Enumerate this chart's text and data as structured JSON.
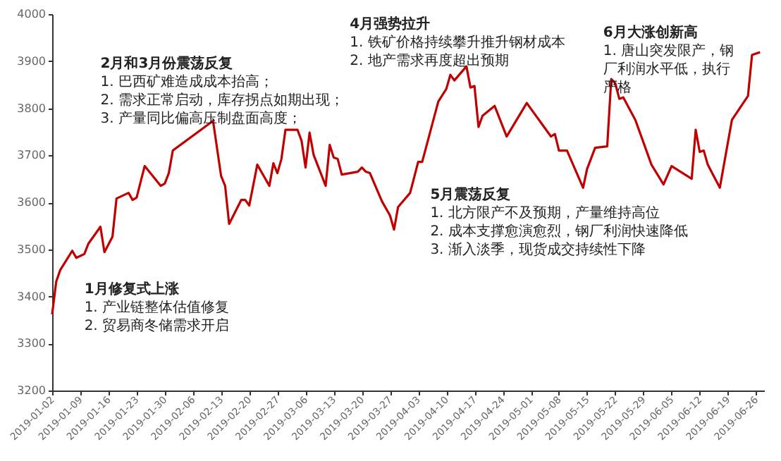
{
  "chart_data": {
    "type": "line",
    "annotations": [
      "1月修复式上涨\n1. 产业链整体估值修复\n2. 贸易商冬储需求开启",
      "2月和3月份震荡反复\n1. 巴西矿难造成成本抬高；\n2. 需求正常启动，库存拐点如期出现；\n3. 产量同比偏高压制盘面高度；",
      "4月强势拉升\n1. 铁矿价格持续攀升推升钢材成本\n2. 地产需求再度超出预期",
      "5月震荡反复\n1. 北方限产不及预期，产量维持高位\n2. 成本支撑愈演愈烈，钢厂利润快速降低\n3. 渐入淡季，现货成交持续性下降",
      "6月大涨创新高\n1. 唐山突发限产，钢",
      "厂利润水平低，执行",
      "严格"
    ],
    "x": [
      "2019-01-02",
      "2019-01-03",
      "2019-01-04",
      "2019-01-07",
      "2019-01-08",
      "2019-01-10",
      "2019-01-11",
      "2019-01-14",
      "2019-01-15",
      "2019-01-17",
      "2019-01-18",
      "2019-01-21",
      "2019-01-22",
      "2019-01-23",
      "2019-01-25",
      "2019-01-29",
      "2019-01-30",
      "2019-01-31",
      "2019-02-01",
      "2019-02-11",
      "2019-02-13",
      "2019-02-14",
      "2019-02-15",
      "2019-02-18",
      "2019-02-19",
      "2019-02-20",
      "2019-02-22",
      "2019-02-25",
      "2019-02-26",
      "2019-02-27",
      "2019-02-28",
      "2019-03-01",
      "2019-03-04",
      "2019-03-05",
      "2019-03-06",
      "2019-03-07",
      "2019-03-08",
      "2019-03-11",
      "2019-03-12",
      "2019-03-13",
      "2019-03-14",
      "2019-03-15",
      "2019-03-19",
      "2019-03-20",
      "2019-03-21",
      "2019-03-22",
      "2019-03-25",
      "2019-03-27",
      "2019-03-28",
      "2019-03-29",
      "2019-04-01",
      "2019-04-03",
      "2019-04-04",
      "2019-04-08",
      "2019-04-10",
      "2019-04-11",
      "2019-04-12",
      "2019-04-15",
      "2019-04-16",
      "2019-04-17",
      "2019-04-18",
      "2019-04-19",
      "2019-04-22",
      "2019-04-25",
      "2019-04-30",
      "2019-05-01",
      "2019-05-06",
      "2019-05-07",
      "2019-05-08",
      "2019-05-10",
      "2019-05-14",
      "2019-05-15",
      "2019-05-17",
      "2019-05-20",
      "2019-05-21",
      "2019-05-22",
      "2019-05-23",
      "2019-05-24",
      "2019-05-27",
      "2019-05-31",
      "2019-06-03",
      "2019-06-05",
      "2019-06-10",
      "2019-06-11",
      "2019-06-12",
      "2019-06-13",
      "2019-06-14",
      "2019-06-17",
      "2019-06-20",
      "2019-06-24",
      "2019-06-25",
      "2019-06-27"
    ],
    "series": [
      {
        "color": "#c00000",
        "values": [
          3362,
          3431,
          3456,
          3497,
          3482,
          3490,
          3512,
          3548,
          3494,
          3527,
          3608,
          3620,
          3605,
          3610,
          3677,
          3635,
          3640,
          3662,
          3710,
          3773,
          3656,
          3635,
          3554,
          3605,
          3605,
          3593,
          3680,
          3635,
          3683,
          3662,
          3692,
          3754,
          3754,
          3731,
          3674,
          3748,
          3701,
          3635,
          3722,
          3695,
          3692,
          3659,
          3665,
          3674,
          3665,
          3662,
          3602,
          3572,
          3542,
          3590,
          3620,
          3686,
          3686,
          3814,
          3841,
          3871,
          3859,
          3889,
          3844,
          3847,
          3760,
          3784,
          3805,
          3740,
          3811,
          3799,
          3740,
          3745,
          3710,
          3710,
          3631,
          3671,
          3716,
          3719,
          3862,
          3853,
          3820,
          3823,
          3775,
          3680,
          3638,
          3677,
          3650,
          3754,
          3707,
          3710,
          3680,
          3631,
          3775,
          3826,
          3913,
          3919
        ]
      }
    ],
    "xlim": [
      "2019-01-02",
      "2019-06-28"
    ],
    "xticks": [
      "2019-01-02",
      "2019-01-09",
      "2019-01-16",
      "2019-01-23",
      "2019-01-30",
      "2019-02-06",
      "2019-02-13",
      "2019-02-20",
      "2019-02-27",
      "2019-03-06",
      "2019-03-13",
      "2019-03-20",
      "2019-03-27",
      "2019-04-03",
      "2019-04-10",
      "2019-04-17",
      "2019-04-24",
      "2019-05-01",
      "2019-05-08",
      "2019-05-15",
      "2019-05-22",
      "2019-05-29",
      "2019-06-05",
      "2019-06-12",
      "2019-06-19",
      "2019-06-26"
    ],
    "ylim": [
      3200,
      4000
    ],
    "yticks": [
      3200,
      3300,
      3400,
      3500,
      3600,
      3700,
      3800,
      3900,
      4000
    ],
    "grid": false,
    "marker": "none",
    "line_style": "solid"
  }
}
